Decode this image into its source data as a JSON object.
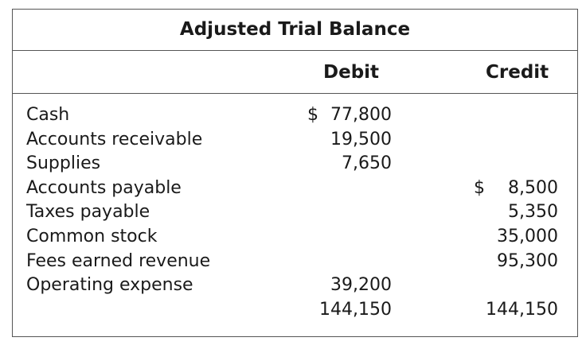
{
  "title": "Adjusted Trial Balance",
  "columns": {
    "debit": "Debit",
    "credit": "Credit"
  },
  "rows": [
    {
      "account": "Cash",
      "debit_symbol": "$",
      "debit": "77,800",
      "credit_symbol": "",
      "credit": ""
    },
    {
      "account": "Accounts receivable",
      "debit_symbol": "",
      "debit": "19,500",
      "credit_symbol": "",
      "credit": ""
    },
    {
      "account": "Supplies",
      "debit_symbol": "",
      "debit": "7,650",
      "credit_symbol": "",
      "credit": ""
    },
    {
      "account": "Accounts payable",
      "debit_symbol": "",
      "debit": "",
      "credit_symbol": "$",
      "credit": "8,500"
    },
    {
      "account": "Taxes payable",
      "debit_symbol": "",
      "debit": "",
      "credit_symbol": "",
      "credit": "5,350"
    },
    {
      "account": "Common stock",
      "debit_symbol": "",
      "debit": "",
      "credit_symbol": "",
      "credit": "35,000"
    },
    {
      "account": "Fees earned revenue",
      "debit_symbol": "",
      "debit": "",
      "credit_symbol": "",
      "credit": "95,300"
    },
    {
      "account": "Operating expense",
      "debit_symbol": "",
      "debit": "39,200",
      "credit_symbol": "",
      "credit": ""
    }
  ],
  "totals": {
    "debit": "144,150",
    "credit": "144,150"
  }
}
